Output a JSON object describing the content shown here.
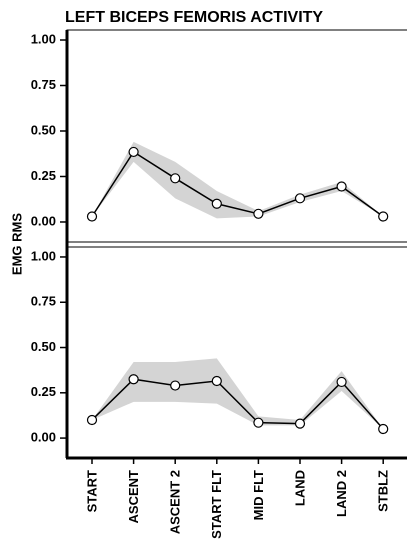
{
  "chart_data": [
    {
      "type": "line",
      "title": "LEFT BICEPS FEMORIS ACTIVITY",
      "ylabel": "EMG RMS",
      "series": [
        {
          "color": "#000000",
          "band_color": "#d4d4d4",
          "values": [
            0.03,
            0.385,
            0.24,
            0.1,
            0.045,
            0.13,
            0.195,
            0.03
          ],
          "lower": [
            0.03,
            0.33,
            0.13,
            0.02,
            0.03,
            0.11,
            0.17,
            0.03
          ],
          "upper": [
            0.03,
            0.44,
            0.33,
            0.17,
            0.06,
            0.15,
            0.22,
            0.03
          ]
        }
      ],
      "ylim": [
        -0.11,
        1.055
      ],
      "yticks": [
        {
          "value": 0,
          "label": "0.00"
        },
        {
          "value": 0.25,
          "label": "0.25"
        },
        {
          "value": 0.5,
          "label": "0.50"
        },
        {
          "value": 0.75,
          "label": "0.75"
        },
        {
          "value": 1,
          "label": "1.00"
        }
      ]
    },
    {
      "type": "line",
      "categories": [
        "START",
        "ASCENT",
        "ASCENT 2",
        "START FLT",
        "MID FLT",
        "LAND",
        "LAND 2",
        "STBLZ"
      ],
      "series": [
        {
          "color": "#000000",
          "band_color": "#d4d4d4",
          "values": [
            0.1,
            0.325,
            0.29,
            0.315,
            0.085,
            0.08,
            0.31,
            0.05
          ],
          "lower": [
            0.1,
            0.2,
            0.2,
            0.19,
            0.07,
            0.07,
            0.26,
            0.05
          ],
          "upper": [
            0.1,
            0.42,
            0.42,
            0.44,
            0.12,
            0.1,
            0.37,
            0.05
          ]
        }
      ],
      "ylim": [
        -0.11,
        1.055
      ],
      "yticks": [
        {
          "value": 0,
          "label": "0.00"
        },
        {
          "value": 0.25,
          "label": "0.25"
        },
        {
          "value": 0.5,
          "label": "0.50"
        },
        {
          "value": 0.75,
          "label": "0.75"
        },
        {
          "value": 1,
          "label": "1.00"
        }
      ]
    }
  ]
}
